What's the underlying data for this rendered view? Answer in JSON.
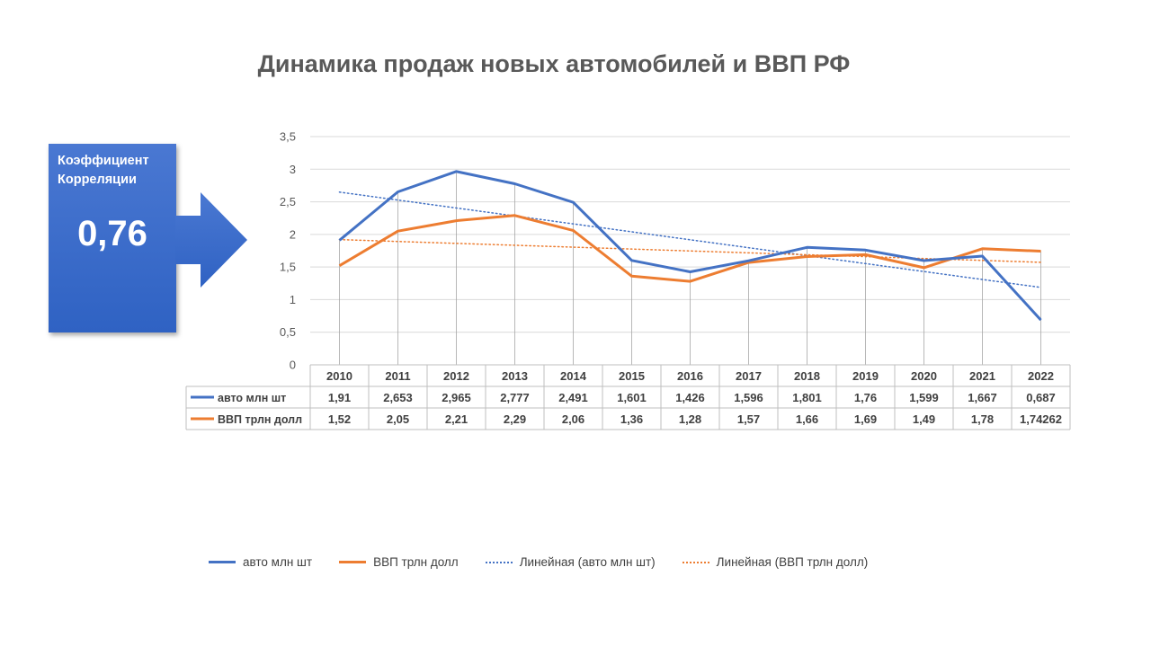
{
  "title": "Динамика продаж новых автомобилей и ВВП РФ",
  "callout": {
    "label": "Коэффициент Корреляции",
    "value": "0,76"
  },
  "colors": {
    "auto": "#4472c4",
    "gdp": "#ed7d31",
    "grid": "#d9d9d9",
    "text": "#404040",
    "callout": "#3b6bca"
  },
  "chart_data": {
    "type": "line",
    "x": [
      "2010",
      "2011",
      "2012",
      "2013",
      "2014",
      "2015",
      "2016",
      "2017",
      "2018",
      "2019",
      "2020",
      "2021",
      "2022"
    ],
    "series": [
      {
        "name": "авто млн шт",
        "color": "#4472c4",
        "values": [
          1.91,
          2.653,
          2.965,
          2.777,
          2.491,
          1.601,
          1.426,
          1.596,
          1.801,
          1.76,
          1.599,
          1.667,
          0.687
        ],
        "labels": [
          "1,91",
          "2,653",
          "2,965",
          "2,777",
          "2,491",
          "1,601",
          "1,426",
          "1,596",
          "1,801",
          "1,76",
          "1,599",
          "1,667",
          "0,687"
        ]
      },
      {
        "name": "ВВП трлн долл",
        "color": "#ed7d31",
        "values": [
          1.52,
          2.05,
          2.21,
          2.29,
          2.06,
          1.36,
          1.28,
          1.57,
          1.66,
          1.69,
          1.49,
          1.78,
          1.74262
        ],
        "labels": [
          "1,52",
          "2,05",
          "2,21",
          "2,29",
          "2,06",
          "1,36",
          "1,28",
          "1,57",
          "1,66",
          "1,69",
          "1,49",
          "1,78",
          "1,74262"
        ]
      }
    ],
    "trendlines": [
      {
        "name": "Линейная (авто млн шт)",
        "series": 0,
        "style": "dotted"
      },
      {
        "name": "Линейная (ВВП трлн долл)",
        "series": 1,
        "style": "dotted"
      }
    ],
    "ylim": [
      0,
      3.5
    ],
    "yticks": [
      "0",
      "0,5",
      "1",
      "1,5",
      "2",
      "2,5",
      "3",
      "3,5"
    ],
    "grid": true,
    "legend": "bottom",
    "data_table": true
  }
}
